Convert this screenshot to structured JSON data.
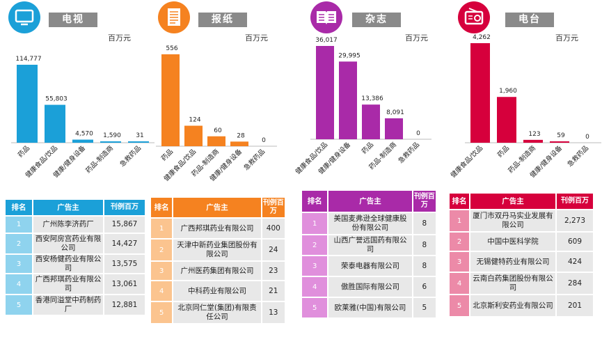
{
  "unit_label": "百万元",
  "chart_data": [
    {
      "type": "bar",
      "title": "电视",
      "icon": "tv-icon",
      "color": "#1ba0d8",
      "ylabel": "百万元",
      "ylim": [
        0,
        114777
      ],
      "categories": [
        "药品",
        "健康食品/饮品",
        "健康/健身设备",
        "药品-制造商",
        "急救药品"
      ],
      "values": [
        114777,
        55803,
        4570,
        1590,
        31
      ],
      "value_labels": [
        "114,777",
        "55,803",
        "4,570",
        "1,590",
        "31"
      ]
    },
    {
      "type": "bar",
      "title": "报纸",
      "icon": "newspaper-icon",
      "color": "#f58220",
      "ylabel": "百万元",
      "ylim": [
        0,
        556
      ],
      "categories": [
        "药品",
        "健康食品/饮品",
        "药品-制造商",
        "健康/健身设备",
        "急救药品"
      ],
      "values": [
        556,
        124,
        60,
        28,
        0
      ],
      "value_labels": [
        "556",
        "124",
        "60",
        "28",
        "0"
      ]
    },
    {
      "type": "bar",
      "title": "杂志",
      "icon": "magazine-icon",
      "color": "#a92aa8",
      "ylabel": "百万元",
      "ylim": [
        0,
        36017
      ],
      "categories": [
        "健康食品/饮品",
        "健康/健身设备",
        "药品",
        "药品-制造商",
        "急救药品"
      ],
      "values": [
        36017,
        29995,
        13386,
        8091,
        0
      ],
      "value_labels": [
        "36,017",
        "29,995",
        "13,386",
        "8,091",
        "0"
      ]
    },
    {
      "type": "bar",
      "title": "电台",
      "icon": "radio-icon",
      "color": "#d6003c",
      "ylabel": "百万元",
      "ylim": [
        0,
        4262
      ],
      "categories": [
        "健康食品/饮品",
        "药品",
        "药品-制造商",
        "健康/健身设备",
        "急救药品"
      ],
      "values": [
        4262,
        1960,
        123,
        59,
        0
      ],
      "value_labels": [
        "4,262",
        "1,960",
        "123",
        "59",
        "0"
      ]
    }
  ],
  "tables": [
    {
      "header": {
        "rank": "排名",
        "advertiser": "广告主",
        "amount": "刊例百万"
      },
      "rows": [
        {
          "rank": "1",
          "advertiser": "广州陈李济药厂",
          "amount": "15,867"
        },
        {
          "rank": "2",
          "advertiser": "西安阿房宫药业有限公司",
          "amount": "14,427"
        },
        {
          "rank": "3",
          "advertiser": "西安杨健药业有限公司",
          "amount": "13,575"
        },
        {
          "rank": "4",
          "advertiser": "广西邦琪药业有限公司",
          "amount": "13,061"
        },
        {
          "rank": "5",
          "advertiser": "香港同溢堂中药制药厂",
          "amount": "12,881"
        }
      ]
    },
    {
      "header": {
        "rank": "排名",
        "advertiser": "广告主",
        "amount": "刊例百万"
      },
      "rows": [
        {
          "rank": "1",
          "advertiser": "广西邦琪药业有限公司",
          "amount": "400"
        },
        {
          "rank": "2",
          "advertiser": "天津中新药业集团股份有限公司",
          "amount": "24"
        },
        {
          "rank": "3",
          "advertiser": "广州医药集团有限公司",
          "amount": "23"
        },
        {
          "rank": "4",
          "advertiser": "中科药业有限公司",
          "amount": "21"
        },
        {
          "rank": "5",
          "advertiser": "北京同仁堂(集团)有限责任公司",
          "amount": "13"
        }
      ]
    },
    {
      "header": {
        "rank": "排名",
        "advertiser": "广告主",
        "amount": "刊例百万"
      },
      "rows": [
        {
          "rank": "1",
          "advertiser": "美国麦弗逊全球健康股份有限公司",
          "amount": "8"
        },
        {
          "rank": "2",
          "advertiser": "山西广誉远国药有限公司",
          "amount": "8"
        },
        {
          "rank": "3",
          "advertiser": "荣泰电器有限公司",
          "amount": "8"
        },
        {
          "rank": "4",
          "advertiser": "傲胜国际有限公司",
          "amount": "6"
        },
        {
          "rank": "5",
          "advertiser": "欧莱雅(中国)有限公司",
          "amount": "5"
        }
      ]
    },
    {
      "header": {
        "rank": "排名",
        "advertiser": "广告主",
        "amount": "刊例百万"
      },
      "rows": [
        {
          "rank": "1",
          "advertiser": "厦门市双丹马实业发展有限公司",
          "amount": "2,273"
        },
        {
          "rank": "2",
          "advertiser": "中国中医科学院",
          "amount": "609"
        },
        {
          "rank": "3",
          "advertiser": "无锡健特药业有限公司",
          "amount": "424"
        },
        {
          "rank": "4",
          "advertiser": "云南白药集团股份有限公司",
          "amount": "284"
        },
        {
          "rank": "5",
          "advertiser": "北京斯利安药业有限公司",
          "amount": "201"
        }
      ]
    }
  ],
  "colors": {
    "header_dark": [
      "#1ba0d8",
      "#f58220",
      "#a92aa8",
      "#d6003c"
    ],
    "rank_light": [
      "#8fd3ee",
      "#fbc48f",
      "#e08fdc",
      "#ec8aa8"
    ],
    "title_box": "#8a8a8a",
    "cell": "#e8e8e8"
  }
}
